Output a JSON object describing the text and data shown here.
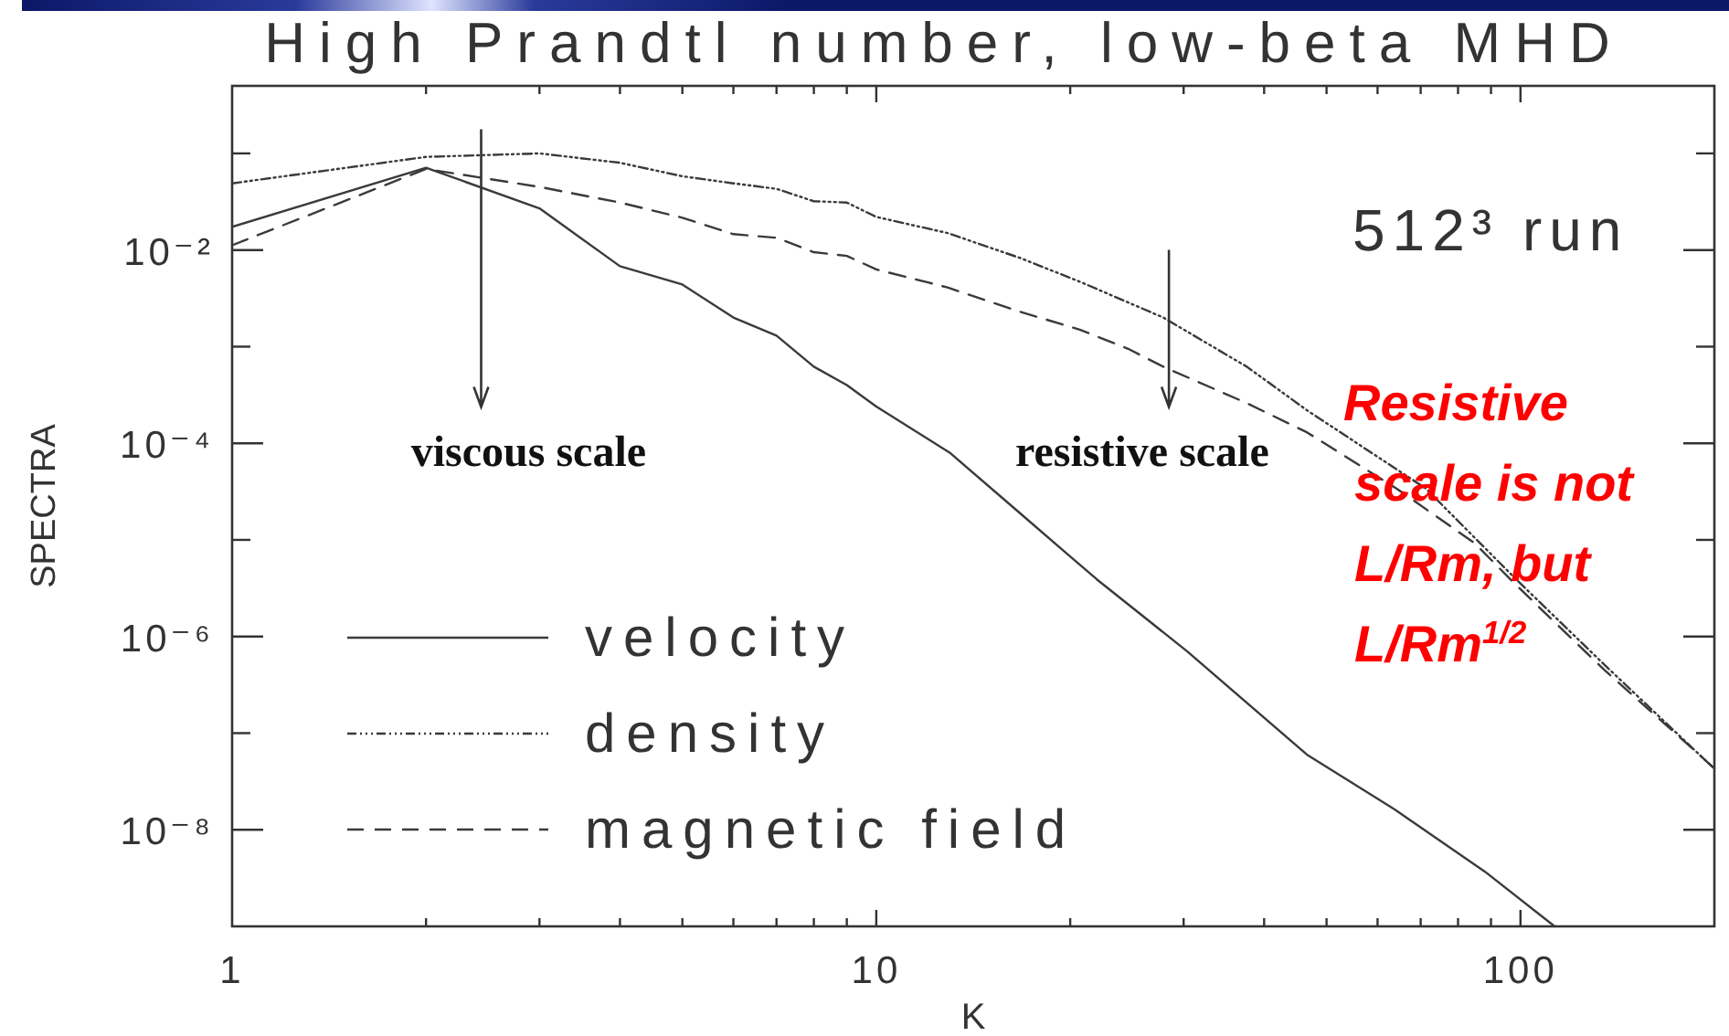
{
  "chart_data": {
    "type": "line",
    "title": "High Prandtl number, low-beta MHD",
    "xlabel": "K",
    "ylabel": "SPECTRA",
    "log": "xy",
    "xlim": [
      1,
      200
    ],
    "ylim": [
      1e-09,
      0.5
    ],
    "xticks": [
      1,
      {
        "value": 2,
        "label": null
      },
      {
        "value": 3,
        "label": null
      },
      {
        "value": 4,
        "label": null
      },
      {
        "value": 5,
        "label": null
      },
      {
        "value": 6,
        "label": null
      },
      {
        "value": 7,
        "label": null
      },
      {
        "value": 8,
        "label": null
      },
      {
        "value": 9,
        "label": null
      },
      10,
      {
        "value": 20,
        "label": null
      },
      {
        "value": 30,
        "label": null
      },
      {
        "value": 40,
        "label": null
      },
      {
        "value": 50,
        "label": null
      },
      {
        "value": 60,
        "label": null
      },
      {
        "value": 70,
        "label": null
      },
      {
        "value": 80,
        "label": null
      },
      {
        "value": 90,
        "label": null
      },
      100
    ],
    "yticks": [
      {
        "value": 1e-08,
        "label": "10⁻⁸"
      },
      {
        "value": 1e-07,
        "label": null
      },
      {
        "value": 1e-06,
        "label": "10⁻⁶"
      },
      {
        "value": 1e-05,
        "label": null
      },
      {
        "value": 0.0001,
        "label": "10⁻⁴"
      },
      {
        "value": 0.001,
        "label": null
      },
      {
        "value": 0.01,
        "label": "10⁻²"
      },
      {
        "value": 0.1,
        "label": null
      }
    ],
    "legend": "bottom left",
    "series": [
      {
        "name": "velocity",
        "color": "#3a3a3a",
        "line_style": "solid",
        "x": [
          1,
          2,
          3,
          4,
          5,
          6,
          7,
          8,
          9,
          10,
          13,
          16.7,
          19.4,
          22,
          30.4,
          46.6,
          64,
          88,
          113
        ],
        "values": [
          0.0174,
          0.071,
          0.027,
          0.0068,
          0.0044,
          0.002,
          0.0013,
          0.00062,
          0.0004,
          0.00024,
          8e-05,
          1.9e-05,
          8e-06,
          3.9e-06,
          7e-07,
          6e-08,
          1.6e-08,
          3.7e-09,
          1e-09
        ]
      },
      {
        "name": "density",
        "color": "#3a3a3a",
        "line_style": "dotted",
        "x": [
          1,
          2,
          3,
          4,
          5,
          6,
          7,
          8,
          9,
          10,
          12.9,
          16.7,
          20.7,
          27.9,
          37.6,
          46.6,
          71.3,
          86.5,
          98.5,
          135,
          190,
          200
        ],
        "values": [
          0.049,
          0.092,
          0.1,
          0.08,
          0.058,
          0.049,
          0.043,
          0.032,
          0.031,
          0.022,
          0.015,
          0.0083,
          0.0047,
          0.002,
          0.00062,
          0.00022,
          3.4e-05,
          9.3e-06,
          3.9e-06,
          5.1e-07,
          5.9e-08,
          4.3e-08
        ]
      },
      {
        "name": "magnetic field",
        "color": "#3a3a3a",
        "line_style": "dashed",
        "x": [
          1,
          2,
          3,
          4,
          5,
          6,
          7,
          8,
          9,
          10,
          12.9,
          16.7,
          20.7,
          24.6,
          27.9,
          37.6,
          46.6,
          64.2,
          84.8,
          98.5,
          135,
          190,
          200
        ],
        "values": [
          0.0112,
          0.069,
          0.045,
          0.031,
          0.0216,
          0.0146,
          0.0134,
          0.0095,
          0.0087,
          0.0063,
          0.0041,
          0.0023,
          0.0015,
          0.00095,
          0.00062,
          0.00026,
          0.00013,
          3.4e-05,
          9.3e-06,
          3.4e-06,
          4.5e-07,
          5.9e-08,
          4.3e-08
        ]
      }
    ],
    "annotations": [
      "viscous scale",
      "resistive scale",
      "512³ run",
      "Resistive scale is not L/Rm, but L/Rm$^{1/2}$"
    ]
  }
}
